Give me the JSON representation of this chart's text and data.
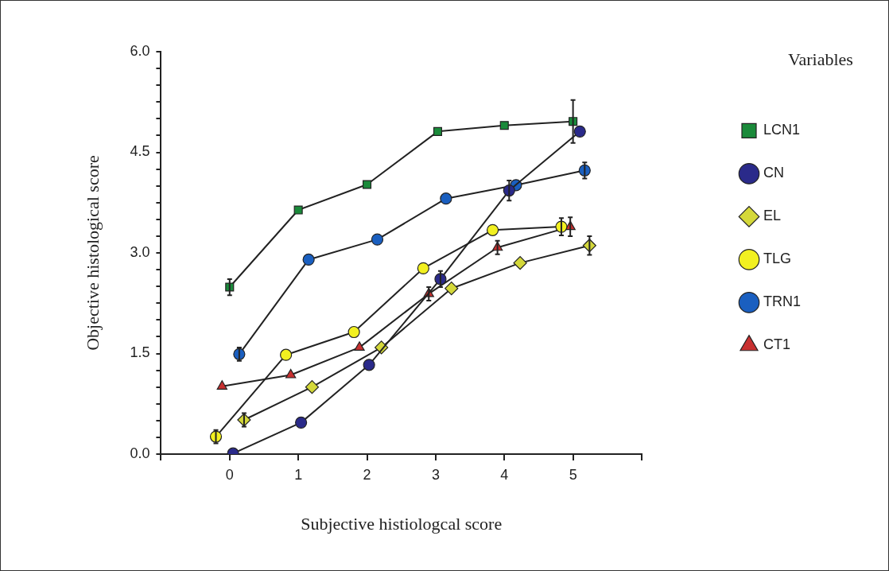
{
  "chart_data": {
    "type": "line",
    "xlabel": "Subjective histiologcal score",
    "ylabel": "Objective histological score",
    "legend_title": "Variables",
    "legend": "right",
    "grid": false,
    "line_style": "solid",
    "xlim": [
      -1,
      6
    ],
    "xticks": [
      {
        "value": -1,
        "label": null
      },
      0,
      1,
      2,
      3,
      4,
      5,
      {
        "value": 6,
        "label": null
      }
    ],
    "ylim": [
      0,
      6
    ],
    "yticks": [
      {
        "value": 0,
        "label": "0.0"
      },
      {
        "value": 0.25,
        "label": null
      },
      {
        "value": 0.5,
        "label": null
      },
      {
        "value": 0.75,
        "label": null
      },
      {
        "value": 1,
        "label": null
      },
      {
        "value": 1.25,
        "label": null
      },
      {
        "value": 1.5,
        "label": "1.5"
      },
      {
        "value": 1.75,
        "label": null
      },
      {
        "value": 2,
        "label": null
      },
      {
        "value": 2.25,
        "label": null
      },
      {
        "value": 2.5,
        "label": null
      },
      {
        "value": 2.75,
        "label": null
      },
      {
        "value": 3,
        "label": "3.0"
      },
      {
        "value": 3.25,
        "label": null
      },
      {
        "value": 3.5,
        "label": null
      },
      {
        "value": 3.75,
        "label": null
      },
      {
        "value": 4,
        "label": null
      },
      {
        "value": 4.25,
        "label": null
      },
      {
        "value": 4.5,
        "label": "4.5"
      },
      {
        "value": 4.75,
        "label": null
      },
      {
        "value": 5,
        "label": null
      },
      {
        "value": 5.25,
        "label": null
      },
      {
        "value": 5.5,
        "label": null
      },
      {
        "value": 5.75,
        "label": null
      },
      {
        "value": 6,
        "label": "6.0"
      }
    ],
    "series": [
      {
        "name": "LCN1",
        "color": "#1a8a3a",
        "marker": "square",
        "x": [
          0,
          1,
          2,
          3.03,
          4,
          5
        ],
        "values": [
          2.49,
          3.64,
          4.02,
          4.81,
          4.9,
          4.96
        ],
        "errors": [
          0.12,
          null,
          null,
          null,
          null,
          0.32
        ]
      },
      {
        "name": "CN",
        "color": "#2a2a8a",
        "marker": "circle",
        "x": [
          0.05,
          1.04,
          2.03,
          3.07,
          4.07,
          5.1
        ],
        "values": [
          0.01,
          0.47,
          1.33,
          2.61,
          3.93,
          4.81
        ],
        "errors": [
          null,
          null,
          null,
          0.12,
          0.15,
          null
        ]
      },
      {
        "name": "EL",
        "color": "#d4d83a",
        "marker": "diamond",
        "x": [
          0.21,
          1.2,
          2.21,
          3.23,
          4.23,
          5.24
        ],
        "values": [
          0.51,
          1.0,
          1.59,
          2.47,
          2.85,
          3.11
        ],
        "errors": [
          0.1,
          null,
          null,
          null,
          null,
          0.14
        ]
      },
      {
        "name": "TLG",
        "color": "#f2f020",
        "marker": "circle",
        "x": [
          -0.2,
          0.82,
          1.81,
          2.82,
          3.83,
          4.83
        ],
        "values": [
          0.26,
          1.48,
          1.82,
          2.77,
          3.34,
          3.39
        ],
        "errors": [
          0.1,
          null,
          null,
          null,
          null,
          0.13
        ]
      },
      {
        "name": "TRN1",
        "color": "#1a5fc0",
        "marker": "circle",
        "x": [
          0.14,
          1.15,
          2.15,
          3.15,
          4.17,
          5.17
        ],
        "values": [
          1.49,
          2.9,
          3.2,
          3.81,
          4.01,
          4.23
        ],
        "errors": [
          0.1,
          null,
          null,
          null,
          null,
          0.12
        ]
      },
      {
        "name": "CT1",
        "color": "#c83030",
        "marker": "triangle",
        "x": [
          -0.11,
          0.89,
          1.89,
          2.9,
          3.9,
          4.96
        ],
        "values": [
          1.01,
          1.18,
          1.59,
          2.39,
          3.08,
          3.39
        ],
        "errors": [
          null,
          null,
          null,
          0.1,
          0.1,
          0.14
        ]
      }
    ]
  }
}
